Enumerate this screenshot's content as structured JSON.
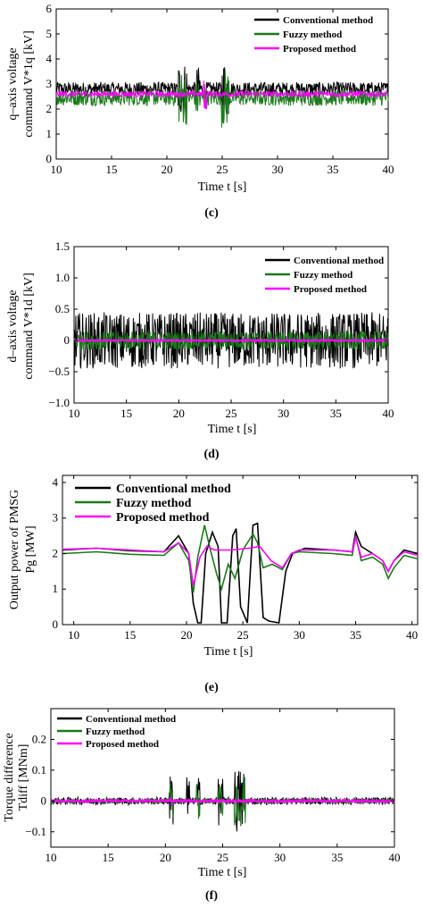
{
  "chart_data": [
    {
      "type": "line",
      "panel": "(c)",
      "ylabel_line1": "q–axis voltage",
      "ylabel_line2": "command  V*1q  [kV]",
      "xlabel": "Time  t [s]",
      "xlim": [
        10,
        40
      ],
      "ylim": [
        0,
        6
      ],
      "xticks": [
        "10",
        "15",
        "20",
        "25",
        "30",
        "35",
        "40"
      ],
      "yticks": [
        "0",
        "1",
        "2",
        "3",
        "4",
        "5",
        "6"
      ],
      "legend_position": "top-right",
      "series": [
        {
          "name": "Conventional method",
          "color": "#000000",
          "base": 2.8,
          "noise": 0.28,
          "bursts": [
            [
              21.0,
              21.8,
              1.1
            ],
            [
              22.6,
              23.0,
              0.9
            ],
            [
              24.9,
              25.6,
              1.2
            ]
          ]
        },
        {
          "name": "Fuzzy method",
          "color": "#1a7a1a",
          "base": 2.45,
          "noise": 0.32,
          "bursts": [
            [
              21.0,
              21.8,
              1.1
            ],
            [
              22.6,
              23.0,
              0.9
            ],
            [
              24.9,
              25.6,
              1.2
            ]
          ]
        },
        {
          "name": "Proposed method",
          "color": "#ff00ff",
          "base": 2.6,
          "noise": 0.12,
          "bursts": [
            [
              23.3,
              23.6,
              -0.6
            ]
          ]
        }
      ]
    },
    {
      "type": "line",
      "panel": "(d)",
      "ylabel_line1": "d–axis voltage",
      "ylabel_line2": "command  V*1d  [kV]",
      "xlabel": "Time  t [s]",
      "xlim": [
        10,
        40
      ],
      "ylim": [
        -1.0,
        1.5
      ],
      "xticks": [
        "10",
        "15",
        "20",
        "25",
        "30",
        "35",
        "40"
      ],
      "yticks": [
        "−1.0",
        "−0.5",
        "0",
        "0.5",
        "1.0",
        "1.5"
      ],
      "legend_position": "top-right",
      "series": [
        {
          "name": "Conventional method",
          "color": "#000000",
          "base": 0.0,
          "noise": 0.45,
          "bursts": []
        },
        {
          "name": "Fuzzy method",
          "color": "#1a7a1a",
          "base": 0.0,
          "noise": 0.15,
          "bursts": []
        },
        {
          "name": "Proposed method",
          "color": "#ff00ff",
          "base": 0.0,
          "noise": 0.02,
          "bursts": []
        }
      ]
    },
    {
      "type": "line",
      "panel": "(e)",
      "ylabel_line1": "Output power of PMSG",
      "ylabel_line2": "Pg [MW]",
      "xlabel": "Time  t  [s]",
      "xlim": [
        9,
        40.5
      ],
      "ylim": [
        0,
        4.2
      ],
      "xticks": [
        "10",
        "15",
        "20",
        "25",
        "30",
        "35",
        "40"
      ],
      "yticks": [
        "0",
        "1",
        "2",
        "3",
        "4"
      ],
      "legend_position": "top-center",
      "series": [
        {
          "name": "Conventional method",
          "color": "#000000",
          "x": [
            9,
            12,
            15,
            18,
            19.3,
            20.2,
            20.6,
            21.0,
            21.3,
            21.7,
            22.3,
            22.8,
            23.1,
            23.6,
            24.1,
            24.4,
            24.8,
            25.4,
            25.9,
            26.3,
            26.8,
            27.3,
            28.2,
            28.8,
            29.4,
            30.5,
            33,
            34.7,
            35.0,
            35.5,
            36.5,
            37.4,
            37.9,
            38.4,
            39.3,
            40.5
          ],
          "y": [
            2.1,
            2.15,
            2.08,
            2.05,
            2.5,
            2.0,
            0.6,
            0.05,
            0.05,
            2.0,
            2.6,
            2.2,
            0.05,
            0.05,
            2.5,
            2.7,
            0.5,
            0.05,
            2.8,
            2.85,
            0.2,
            0.1,
            0.05,
            1.5,
            2.0,
            2.15,
            2.1,
            2.05,
            2.6,
            2.2,
            2.0,
            1.8,
            1.5,
            1.8,
            2.1,
            2.0
          ]
        },
        {
          "name": "Fuzzy method",
          "color": "#1a7a1a",
          "x": [
            9,
            12,
            15,
            18,
            19.3,
            20.2,
            20.6,
            21.0,
            21.6,
            22.2,
            22.7,
            23.1,
            23.7,
            24.3,
            25.0,
            25.9,
            26.3,
            26.8,
            27.6,
            28.5,
            29.3,
            30,
            33,
            34.7,
            35.0,
            35.5,
            36.5,
            37.4,
            37.9,
            38.4,
            39.3,
            40.5
          ],
          "y": [
            2.0,
            2.05,
            1.98,
            1.95,
            2.3,
            1.8,
            0.9,
            1.9,
            2.8,
            2.0,
            1.4,
            1.0,
            1.7,
            1.3,
            2.1,
            2.55,
            2.3,
            1.6,
            1.7,
            1.55,
            2.0,
            2.05,
            2.0,
            1.95,
            2.5,
            1.8,
            1.9,
            1.7,
            1.3,
            1.6,
            1.95,
            1.85
          ]
        },
        {
          "name": "Proposed method",
          "color": "#ff00ff",
          "x": [
            9,
            12,
            15,
            18,
            19.3,
            20.2,
            20.6,
            21.2,
            21.8,
            22.5,
            24,
            25.5,
            26.5,
            27.5,
            28.5,
            29.3,
            30,
            33,
            34.7,
            35.0,
            35.5,
            36.5,
            37.4,
            37.9,
            38.4,
            39.3,
            40.5
          ],
          "y": [
            2.12,
            2.15,
            2.1,
            2.05,
            2.3,
            2.0,
            1.1,
            1.9,
            2.2,
            2.1,
            2.1,
            2.15,
            2.2,
            1.8,
            1.6,
            2.0,
            2.1,
            2.1,
            2.05,
            2.45,
            1.9,
            2.0,
            1.8,
            1.5,
            1.8,
            2.05,
            1.95
          ]
        }
      ]
    },
    {
      "type": "line",
      "panel": "(f)",
      "ylabel_line1": "Torque difference",
      "ylabel_line2": "Tdiff [MNm]",
      "xlabel": "Time  t [s]",
      "xlim": [
        10,
        40
      ],
      "ylim": [
        -0.15,
        0.3
      ],
      "xticks": [
        "10",
        "15",
        "20",
        "25",
        "30",
        "35",
        "40"
      ],
      "yticks": [
        "−0.1",
        "0",
        "0.1",
        "0.2"
      ],
      "legend_position": "top-left",
      "series": [
        {
          "name": "Conventional method",
          "color": "#000000",
          "base": 0.0,
          "noise": 0.012,
          "bursts": [
            [
              20.3,
              20.7,
              0.09
            ],
            [
              21.8,
              22.1,
              0.1
            ],
            [
              22.7,
              23.0,
              0.08
            ],
            [
              24.6,
              25.0,
              0.08
            ],
            [
              26.0,
              27.0,
              0.11
            ]
          ]
        },
        {
          "name": "Fuzzy method",
          "color": "#1a7a1a",
          "base": 0.0,
          "noise": 0.008,
          "bursts": [
            [
              20.3,
              20.7,
              0.06
            ],
            [
              22.7,
              23.0,
              0.07
            ],
            [
              24.6,
              25.0,
              0.07
            ],
            [
              26.0,
              27.0,
              0.08
            ]
          ]
        },
        {
          "name": "Proposed method",
          "color": "#ff00ff",
          "base": 0.0,
          "noise": 0.006,
          "bursts": [
            [
              20.3,
              20.7,
              0.02
            ]
          ]
        }
      ]
    }
  ]
}
